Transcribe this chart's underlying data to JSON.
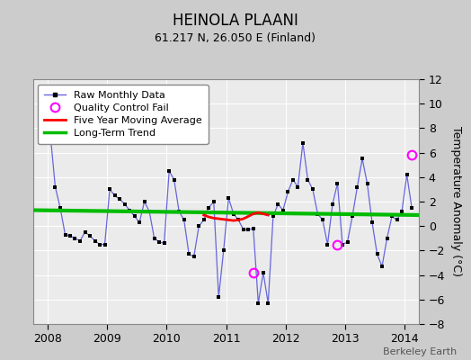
{
  "title": "HEINOLA PLAANI",
  "subtitle": "61.217 N, 26.050 E (Finland)",
  "ylabel": "Temperature Anomaly (°C)",
  "credit": "Berkeley Earth",
  "ylim": [
    -8,
    12
  ],
  "yticks": [
    -8,
    -6,
    -4,
    -2,
    0,
    2,
    4,
    6,
    8,
    10,
    12
  ],
  "xlim_start": 2007.75,
  "xlim_end": 2014.25,
  "bg_color": "#cccccc",
  "plot_bg_color": "#ebebeb",
  "raw_data": {
    "t": [
      2008.042,
      2008.125,
      2008.208,
      2008.292,
      2008.375,
      2008.458,
      2008.542,
      2008.625,
      2008.708,
      2008.792,
      2008.875,
      2008.958,
      2009.042,
      2009.125,
      2009.208,
      2009.292,
      2009.375,
      2009.458,
      2009.542,
      2009.625,
      2009.708,
      2009.792,
      2009.875,
      2009.958,
      2010.042,
      2010.125,
      2010.208,
      2010.292,
      2010.375,
      2010.458,
      2010.542,
      2010.625,
      2010.708,
      2010.792,
      2010.875,
      2010.958,
      2011.042,
      2011.125,
      2011.208,
      2011.292,
      2011.375,
      2011.458,
      2011.542,
      2011.625,
      2011.708,
      2011.792,
      2011.875,
      2011.958,
      2012.042,
      2012.125,
      2012.208,
      2012.292,
      2012.375,
      2012.458,
      2012.542,
      2012.625,
      2012.708,
      2012.792,
      2012.875,
      2012.958,
      2013.042,
      2013.125,
      2013.208,
      2013.292,
      2013.375,
      2013.458,
      2013.542,
      2013.625,
      2013.708,
      2013.792,
      2013.875,
      2013.958,
      2014.042,
      2014.125
    ],
    "v": [
      7.5,
      3.2,
      1.5,
      -0.7,
      -0.8,
      -1.0,
      -1.2,
      -0.5,
      -0.8,
      -1.2,
      -1.5,
      -1.5,
      3.0,
      2.5,
      2.2,
      1.8,
      1.3,
      0.8,
      0.3,
      2.0,
      1.2,
      -1.0,
      -1.3,
      -1.4,
      4.5,
      3.8,
      1.2,
      0.5,
      -2.3,
      -2.5,
      0.0,
      0.5,
      1.5,
      2.0,
      -5.8,
      -2.0,
      2.3,
      1.0,
      0.5,
      -0.3,
      -0.3,
      -0.2,
      -6.3,
      -3.8,
      -6.3,
      0.8,
      1.8,
      1.3,
      2.8,
      3.8,
      3.2,
      6.8,
      3.8,
      3.0,
      1.0,
      0.5,
      -1.5,
      1.8,
      3.5,
      -1.5,
      -1.3,
      0.8,
      3.2,
      5.5,
      3.5,
      0.3,
      -2.3,
      -3.3,
      -1.0,
      0.8,
      0.5,
      1.2,
      4.2,
      1.5
    ]
  },
  "qc_fail": [
    {
      "t": 2011.458,
      "v": -3.8
    },
    {
      "t": 2012.875,
      "v": -1.5
    },
    {
      "t": 2014.125,
      "v": 5.8
    }
  ],
  "five_year_ma": {
    "t": [
      2010.625,
      2010.708,
      2010.792,
      2010.875,
      2010.958,
      2011.042,
      2011.125,
      2011.208,
      2011.292,
      2011.375,
      2011.458,
      2011.542,
      2011.625,
      2011.708
    ],
    "v": [
      0.9,
      0.75,
      0.65,
      0.6,
      0.55,
      0.5,
      0.45,
      0.5,
      0.6,
      0.8,
      1.0,
      1.1,
      1.0,
      0.9
    ]
  },
  "long_term_trend": {
    "t": [
      2007.75,
      2014.25
    ],
    "v": [
      1.3,
      0.9
    ]
  },
  "raw_color": "#6666dd",
  "raw_lw": 0.9,
  "marker_color": "black",
  "marker_size": 3,
  "qc_color": "magenta",
  "qc_marker_size": 7,
  "ma_color": "red",
  "ma_lw": 2.0,
  "trend_color": "#00bb00",
  "trend_lw": 3.0,
  "grid_color": "#ffffff",
  "legend_fontsize": 8,
  "tick_fontsize": 9,
  "title_fontsize": 12,
  "subtitle_fontsize": 9
}
